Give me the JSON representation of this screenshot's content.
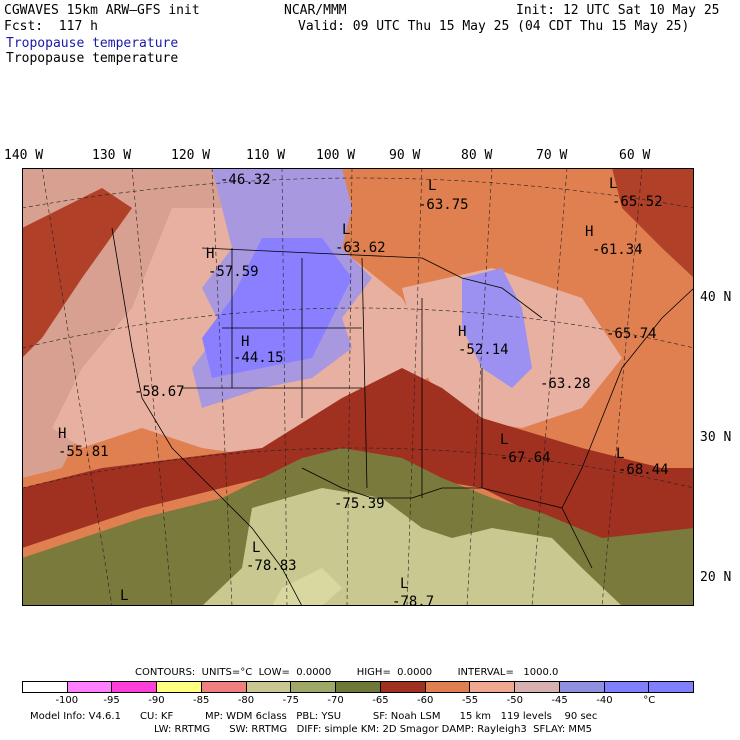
{
  "header": {
    "model": "CGWAVES 15km ARW–GFS init",
    "org": "NCAR/MMM",
    "init": "Init: 12 UTC Sat 10 May 25",
    "fcst": "Fcst:  117 h",
    "valid": "Valid: 09 UTC Thu 15 May 25 (04 CDT Thu 15 May 25)",
    "field_blue": "Tropopause temperature",
    "field_black": "Tropopause temperature"
  },
  "axes": {
    "lon_labels": [
      "140 W",
      "130 W",
      "120 W",
      "110 W",
      "100 W",
      "90 W",
      "80 W",
      "70 W",
      "60 W"
    ],
    "lat_labels": [
      "40 N",
      "30 N",
      "20 N"
    ]
  },
  "map": {
    "extrema": [
      {
        "type": "",
        "value": "-46.32"
      },
      {
        "type": "L",
        "value": "-63.75"
      },
      {
        "type": "L",
        "value": "-65.52"
      },
      {
        "type": "H",
        "value": "-61.34"
      },
      {
        "type": "L",
        "value": "-63.62"
      },
      {
        "type": "H",
        "value": "-57.59"
      },
      {
        "type": "H",
        "value": "-44.15"
      },
      {
        "type": "H",
        "value": "-52.14"
      },
      {
        "type": "",
        "value": "-65.74"
      },
      {
        "type": "",
        "value": "-63.28"
      },
      {
        "type": "",
        "value": "-58.67"
      },
      {
        "type": "H",
        "value": "-55.81"
      },
      {
        "type": "L",
        "value": "-67.64"
      },
      {
        "type": "L",
        "value": "-68.44"
      },
      {
        "type": "",
        "value": "-75.39"
      },
      {
        "type": "L",
        "value": "-78.83"
      },
      {
        "type": "L",
        "value": "-78.7"
      },
      {
        "type": "L",
        "value": ""
      }
    ]
  },
  "legend": {
    "contours": "CONTOURS:  UNITS=°C  LOW=  0.0000        HIGH=  0.0000        INTERVAL=   1000.0",
    "colors": [
      "#ffffff",
      "#ff80ff",
      "#ff40d8",
      "#ffff80",
      "#f08080",
      "#c8c890",
      "#a0a868",
      "#707838",
      "#a03020",
      "#e08050",
      "#f0a890",
      "#d8b0b0",
      "#9090e0",
      "#8080ff",
      "#8080ff"
    ],
    "labels": [
      "-100",
      "-95",
      "-90",
      "-85",
      "-80",
      "-75",
      "-70",
      "-65",
      "-60",
      "-55",
      "-50",
      "-45",
      "-40",
      "°C"
    ],
    "model_line1": "Model Info: V4.6.1      CU: KF          MP: WDM 6class   PBL: YSU          SF: Noah LSM      15 km   119 levels    90 sec",
    "model_line2": "LW: RRTMG      SW: RRTMG   DIFF: simple KM: 2D Smagor DAMP: Rayleigh3  SFLAY: MM5"
  }
}
